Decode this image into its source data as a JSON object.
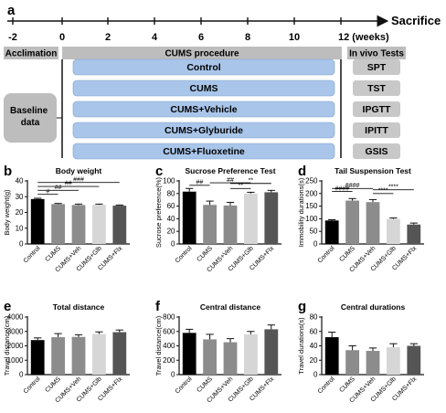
{
  "timeline": {
    "panel": "a",
    "weeks": [
      "-2",
      "0",
      "2",
      "4",
      "6",
      "8",
      "10",
      "12 (weeks)"
    ],
    "end_label": "Sacrifice",
    "acclimation": "Acclimation",
    "procedure": "CUMS procedure",
    "in_vivo": "In vivo Tests",
    "baseline": "Baseline data",
    "groups": [
      "Control",
      "CUMS",
      "CUMS+Vehicle",
      "CUMS+Glyburide",
      "CUMS+Fluoxetine"
    ],
    "tests": [
      "SPT",
      "TST",
      "IPGTT",
      "IPITT",
      "GSIS"
    ],
    "colors": {
      "group_box": "#a9c6ea",
      "gray_box": "#bdbdbd",
      "test_box": "#c8c8c8"
    }
  },
  "bar_colors": [
    "#000000",
    "#8c8c8c",
    "#8c8c8c",
    "#d6d6d6",
    "#555555"
  ],
  "chart_data": [
    {
      "panel": "b",
      "type": "bar",
      "title": "Body weight",
      "ylabel": "Body weight(g)",
      "categories": [
        "Control",
        "CUMS",
        "CUMS+Veh",
        "CUMS+Glb",
        "CUMS+Flx"
      ],
      "values": [
        28.5,
        25.3,
        24.7,
        24.8,
        24.3
      ],
      "errors": [
        0.5,
        0.4,
        0.6,
        0.5,
        0.4
      ],
      "ylim": [
        0,
        40
      ],
      "yticks": [
        "0",
        "10",
        "20",
        "30",
        "40"
      ],
      "significance": [
        {
          "from": 0,
          "to": 1,
          "label": "#",
          "level": 31.5
        },
        {
          "from": 0,
          "to": 2,
          "label": "##",
          "level": 34.0
        },
        {
          "from": 0,
          "to": 3,
          "label": "##",
          "level": 36.5
        },
        {
          "from": 0,
          "to": 4,
          "label": "###",
          "level": 39.0
        }
      ]
    },
    {
      "panel": "c",
      "type": "bar",
      "title": "Sucrose Preference Test",
      "ylabel": "Sucrose preference(%)",
      "categories": [
        "Control",
        "CUMS",
        "CUMS+Veh",
        "CUMS+Glb",
        "CUMS+Flx"
      ],
      "values": [
        83,
        62,
        61,
        80,
        82
      ],
      "errors": [
        5,
        6,
        5,
        2,
        3
      ],
      "ylim": [
        0,
        100
      ],
      "yticks": [
        "0",
        "20",
        "40",
        "60",
        "80",
        "100"
      ],
      "significance": [
        {
          "from": 0,
          "to": 1,
          "label": "##",
          "level": 93
        },
        {
          "from": 1,
          "to": 3,
          "label": "##",
          "level": 97
        },
        {
          "from": 2,
          "to": 3,
          "label": "**",
          "level": 88
        },
        {
          "from": 2,
          "to": 4,
          "label": "**",
          "level": 96
        }
      ]
    },
    {
      "panel": "d",
      "type": "bar",
      "title": "Tail Suspension Test",
      "ylabel": "Immobility durations(s)",
      "categories": [
        "Control",
        "CUMS",
        "CUMS+Veh",
        "CUMS+Glb",
        "CUMS+Flx"
      ],
      "values": [
        93,
        172,
        166,
        99,
        77
      ],
      "errors": [
        3,
        8,
        10,
        4,
        6
      ],
      "ylim": [
        0,
        250
      ],
      "yticks": [
        "0",
        "50",
        "100",
        "150",
        "200",
        "250"
      ],
      "significance": [
        {
          "from": 0,
          "to": 1,
          "label": "####",
          "level": 208
        },
        {
          "from": 0,
          "to": 2,
          "label": "####",
          "level": 220
        },
        {
          "from": 2,
          "to": 3,
          "label": "****",
          "level": 200
        },
        {
          "from": 2,
          "to": 4,
          "label": "****",
          "level": 215
        }
      ]
    },
    {
      "panel": "e",
      "type": "bar",
      "title": "Total distance",
      "ylabel": "Travel distance(cm)",
      "categories": [
        "Control",
        "CUMS",
        "CUMS+Veh",
        "CUMS+Glb",
        "CUMS+Flx"
      ],
      "values": [
        2400,
        2600,
        2620,
        2820,
        2950
      ],
      "errors": [
        150,
        250,
        150,
        150,
        150
      ],
      "ylim": [
        0,
        4000
      ],
      "yticks": [
        "0",
        "1000",
        "2000",
        "3000",
        "4000"
      ],
      "significance": []
    },
    {
      "panel": "f",
      "type": "bar",
      "title": "Central distance",
      "ylabel": "Travel distance(cm)",
      "categories": [
        "Control",
        "CUMS",
        "CUMS+Veh",
        "CUMS+Glb",
        "CUMS+Flx"
      ],
      "values": [
        580,
        490,
        450,
        560,
        630
      ],
      "errors": [
        50,
        70,
        50,
        40,
        60
      ],
      "ylim": [
        0,
        800
      ],
      "yticks": [
        "0",
        "200",
        "400",
        "600",
        "800"
      ],
      "significance": []
    },
    {
      "panel": "g",
      "type": "bar",
      "title": "Central durations",
      "ylabel": "Travel durations(s)",
      "categories": [
        "Control",
        "CUMS",
        "CUMS+Veh",
        "CUMS+Glb",
        "CUMS+Flx"
      ],
      "values": [
        52,
        34,
        33,
        38,
        40
      ],
      "errors": [
        7,
        6,
        4,
        5,
        3
      ],
      "ylim": [
        0,
        80
      ],
      "yticks": [
        "0",
        "20",
        "40",
        "60",
        "80"
      ],
      "significance": []
    }
  ]
}
